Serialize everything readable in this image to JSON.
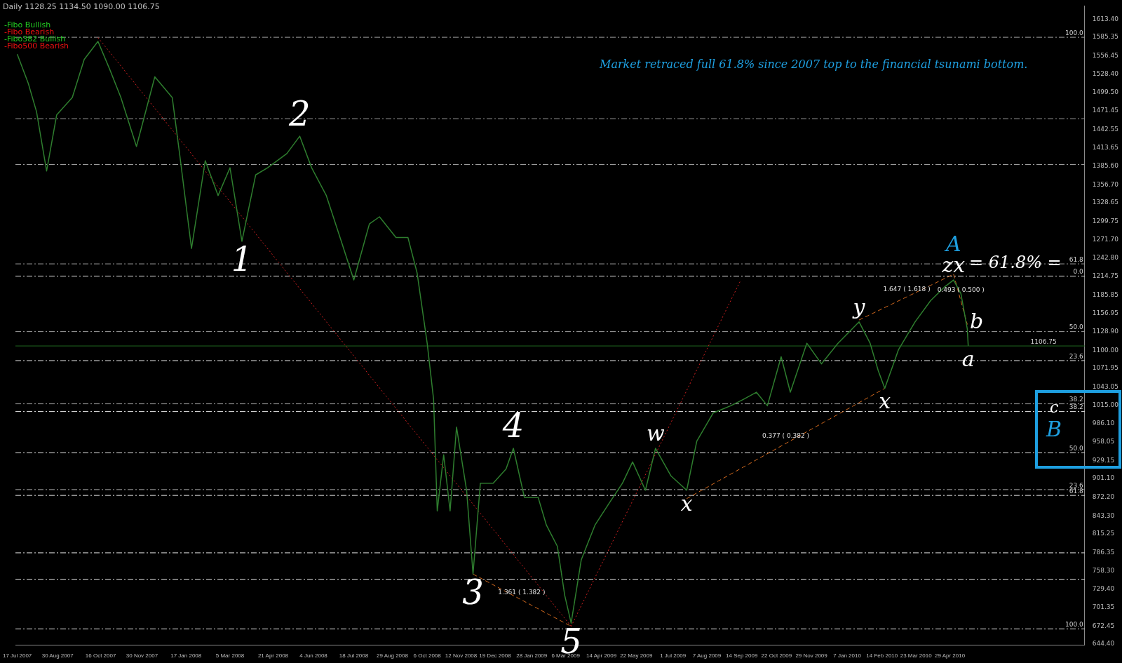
{
  "chart_data": {
    "type": "line",
    "marker": "none",
    "xlim": [
      "2007-07-15",
      "2010-09-23"
    ],
    "ylim": [
      643,
      1634
    ],
    "xticks": [
      {
        "value": "2007-07-17",
        "label": "17 Jul 2007"
      },
      {
        "value": "2007-08-30",
        "label": "30 Aug 2007"
      },
      {
        "value": "2007-10-16",
        "label": "16 Oct 2007"
      },
      {
        "value": "2007-11-30",
        "label": "30 Nov 2007"
      },
      {
        "value": "2008-01-17",
        "label": "17 Jan 2008"
      },
      {
        "value": "2008-03-05",
        "label": "5 Mar 2008"
      },
      {
        "value": "2008-04-21",
        "label": "21 Apr 2008"
      },
      {
        "value": "2008-06-04",
        "label": "4 Jun 2008"
      },
      {
        "value": "2008-07-18",
        "label": "18 Jul 2008"
      },
      {
        "value": "2008-08-29",
        "label": "29 Aug 2008"
      },
      {
        "value": "2008-10-06",
        "label": "6 Oct 2008"
      },
      {
        "value": "2008-11-12",
        "label": "12 Nov 2008"
      },
      {
        "value": "2008-12-19",
        "label": "19 Dec 2008"
      },
      {
        "value": "2009-01-28",
        "label": "28 Jan 2009"
      },
      {
        "value": "2009-03-06",
        "label": "6 Mar 2009"
      },
      {
        "value": "2009-04-14",
        "label": "14 Apr 2009"
      },
      {
        "value": "2009-05-22",
        "label": "22 May 2009"
      },
      {
        "value": "2009-07-01",
        "label": "1 Jul 2009"
      },
      {
        "value": "2009-08-07",
        "label": "7 Aug 2009"
      },
      {
        "value": "2009-09-14",
        "label": "14 Sep 2009"
      },
      {
        "value": "2009-10-22",
        "label": "22 Oct 2009"
      },
      {
        "value": "2009-11-29",
        "label": "29 Nov 2009"
      },
      {
        "value": "2010-01-07",
        "label": "7 Jan 2010"
      },
      {
        "value": "2010-02-14",
        "label": "14 Feb 2010"
      },
      {
        "value": "2010-03-23",
        "label": "23 Mar 2010"
      },
      {
        "value": "2010-04-29",
        "label": "29 Apr 2010"
      }
    ],
    "yticks": [
      {
        "value": 1613.4,
        "label": "1613.40"
      },
      {
        "value": 1585.35,
        "label": "1585.35"
      },
      {
        "value": 1556.45,
        "label": "1556.45"
      },
      {
        "value": 1528.4,
        "label": "1528.40"
      },
      {
        "value": 1499.5,
        "label": "1499.50"
      },
      {
        "value": 1471.45,
        "label": "1471.45"
      },
      {
        "value": 1442.55,
        "label": "1442.55"
      },
      {
        "value": 1413.65,
        "label": "1413.65"
      },
      {
        "value": 1385.6,
        "label": "1385.60"
      },
      {
        "value": 1356.7,
        "label": "1356.70"
      },
      {
        "value": 1328.65,
        "label": "1328.65"
      },
      {
        "value": 1299.75,
        "label": "1299.75"
      },
      {
        "value": 1271.7,
        "label": "1271.70"
      },
      {
        "value": 1242.8,
        "label": "1242.80"
      },
      {
        "value": 1214.75,
        "label": "1214.75"
      },
      {
        "value": 1185.85,
        "label": "1185.85"
      },
      {
        "value": 1156.95,
        "label": "1156.95"
      },
      {
        "value": 1128.9,
        "label": "1128.90"
      },
      {
        "value": 1100,
        "label": "1100.00"
      },
      {
        "value": 1071.95,
        "label": "1071.95"
      },
      {
        "value": 1043.05,
        "label": "1043.05"
      },
      {
        "value": 1015,
        "label": "1015.00"
      },
      {
        "value": 986.1,
        "label": "986.10"
      },
      {
        "value": 958.05,
        "label": "958.05"
      },
      {
        "value": 929.15,
        "label": "929.15"
      },
      {
        "value": 901.1,
        "label": "901.10"
      },
      {
        "value": 872.2,
        "label": "872.20"
      },
      {
        "value": 843.3,
        "label": "843.30"
      },
      {
        "value": 815.25,
        "label": "815.25"
      },
      {
        "value": 786.35,
        "label": "786.35"
      },
      {
        "value": 758.3,
        "label": "758.30"
      },
      {
        "value": 729.4,
        "label": "729.40"
      },
      {
        "value": 701.35,
        "label": "701.35"
      },
      {
        "value": 672.45,
        "label": "672.45"
      },
      {
        "value": 644.4,
        "label": "644.40"
      }
    ],
    "series": [
      {
        "color": "#2e7d2e",
        "x": [
          "2007-07-17",
          "2007-07-29",
          "2007-08-07",
          "2007-08-18",
          "2007-08-29",
          "2007-09-15",
          "2007-09-28",
          "2007-10-13",
          "2007-10-26",
          "2007-11-07",
          "2007-11-24",
          "2007-12-14",
          "2008-01-02",
          "2008-01-10",
          "2008-01-23",
          "2008-02-07",
          "2008-02-21",
          "2008-03-05",
          "2008-03-18",
          "2008-04-02",
          "2008-04-15",
          "2008-05-06",
          "2008-05-20",
          "2008-06-02",
          "2008-06-18",
          "2008-07-03",
          "2008-07-18",
          "2008-08-04",
          "2008-08-15",
          "2008-09-02",
          "2008-09-15",
          "2008-09-25",
          "2008-10-06",
          "2008-10-13",
          "2008-10-17",
          "2008-10-24",
          "2008-10-31",
          "2008-11-07",
          "2008-11-18",
          "2008-11-25",
          "2008-12-03",
          "2008-12-17",
          "2008-12-31",
          "2009-01-08",
          "2009-01-20",
          "2009-02-04",
          "2009-02-13",
          "2009-02-25",
          "2009-03-05",
          "2009-03-12",
          "2009-03-23",
          "2009-04-07",
          "2009-04-22",
          "2009-05-07",
          "2009-05-18",
          "2009-06-01",
          "2009-06-12",
          "2009-06-29",
          "2009-07-16",
          "2009-07-27",
          "2009-08-14",
          "2009-09-02",
          "2009-09-16",
          "2009-09-30",
          "2009-10-12",
          "2009-10-27",
          "2009-11-06",
          "2009-11-24",
          "2009-12-10",
          "2009-12-28",
          "2010-01-20",
          "2010-02-01",
          "2010-02-10",
          "2010-02-17",
          "2010-03-04",
          "2010-03-22",
          "2010-04-08",
          "2010-04-23",
          "2010-05-03",
          "2010-05-11",
          "2010-05-18",
          "2010-05-19"
        ],
        "values": [
          1559,
          1514,
          1470,
          1378,
          1465,
          1492,
          1551,
          1579,
          1535,
          1492,
          1416,
          1524,
          1492,
          1405,
          1258,
          1394,
          1340,
          1383,
          1269,
          1372,
          1383,
          1405,
          1432,
          1383,
          1340,
          1275,
          1209,
          1296,
          1307,
          1275,
          1275,
          1220,
          1111,
          1024,
          851,
          938,
          851,
          981,
          883,
          753,
          894,
          894,
          916,
          948,
          872,
          872,
          829,
          796,
          720,
          677,
          775,
          829,
          862,
          894,
          927,
          883,
          948,
          905,
          883,
          959,
          1003,
          1014,
          1024,
          1035,
          1014,
          1090,
          1035,
          1111,
          1079,
          1111,
          1144,
          1111,
          1068,
          1041,
          1101,
          1144,
          1177,
          1198,
          1209,
          1188,
          1133,
          1107
        ]
      },
      {
        "type": "line",
        "line_style": "dotted",
        "color": "#cc2020",
        "x": [
          "2007-10-13",
          "2009-03-12"
        ],
        "values": [
          1585,
          672
        ]
      },
      {
        "type": "line",
        "line_style": "dotted",
        "color": "#cc2020",
        "x": [
          "2009-03-12",
          "2009-09-13"
        ],
        "values": [
          672,
          1209
        ]
      },
      {
        "type": "line",
        "line_style": "dashed",
        "color": "#d2691e",
        "x": [
          "2008-11-25",
          "2009-03-12"
        ],
        "values": [
          753,
          672
        ]
      },
      {
        "type": "line",
        "line_style": "dashed",
        "color": "#d2691e",
        "x": [
          "2009-07-16",
          "2010-02-17"
        ],
        "values": [
          870,
          1041
        ]
      },
      {
        "type": "line",
        "line_style": "dashed",
        "color": "#d2691e",
        "x": [
          "2010-01-20",
          "2010-05-03"
        ],
        "values": [
          1147,
          1218
        ]
      },
      {
        "type": "line",
        "line_style": "dashed",
        "color": "#d2691e",
        "x": [
          "2010-05-03",
          "2010-05-18"
        ],
        "values": [
          1218,
          1140
        ]
      }
    ],
    "ref_lines": [
      {
        "axis": "y",
        "value": 1585.35,
        "color": "#a0a0a0"
      },
      {
        "axis": "y",
        "value": 1459,
        "color": "#a0a0a0"
      },
      {
        "axis": "y",
        "value": 1388,
        "color": "#a0a0a0"
      },
      {
        "axis": "y",
        "value": 1234,
        "color": "#a0a0a0"
      },
      {
        "axis": "y",
        "value": 1215,
        "color": "#e8e8e8"
      },
      {
        "axis": "y",
        "value": 1129,
        "color": "#a0a0a0"
      },
      {
        "axis": "y",
        "value": 1084,
        "color": "#e8e8e8"
      },
      {
        "axis": "y",
        "value": 1017,
        "color": "#a0a0a0"
      },
      {
        "axis": "y",
        "value": 1005,
        "color": "#e8e8e8"
      },
      {
        "axis": "y",
        "value": 941,
        "color": "#e8e8e8"
      },
      {
        "axis": "y",
        "value": 884,
        "color": "#a0a0a0"
      },
      {
        "axis": "y",
        "value": 875,
        "color": "#e8e8e8"
      },
      {
        "axis": "y",
        "value": 786,
        "color": "#e8e8e8"
      },
      {
        "axis": "y",
        "value": 745,
        "color": "#e8e8e8"
      },
      {
        "axis": "y",
        "value": 668,
        "color": "#e8e8e8"
      },
      {
        "axis": "y",
        "value": 1106.75,
        "label": "1106.75",
        "color": "#1f6a1f",
        "line_style": "solid"
      }
    ],
    "annotations": [
      "Daily 1128.25 1134.50 1090.00 1106.75",
      "-Fibo Bullish",
      "-Fibo Bearish",
      "-Fibo382 Bullish",
      "-Fibo500 Bearish",
      "Market retraced full 61.8% since 2007 top to the financial tsunami bottom.",
      "c",
      "B",
      "= 61.8%  =",
      "b",
      {
        "text": "1",
        "x": "2008-03-18",
        "y": 1269
      },
      {
        "text": "2",
        "x": "2008-05-20",
        "y": 1432
      },
      {
        "text": "3",
        "x": "2008-11-25",
        "y": 753
      },
      {
        "text": "4",
        "x": "2009-01-08",
        "y": 948
      },
      {
        "text": "5",
        "x": "2009-03-12",
        "y": 677
      },
      {
        "text": "w",
        "x": "2009-06-12",
        "y": 948
      },
      {
        "text": "x",
        "x": "2009-07-16",
        "y": 883
      },
      {
        "text": "y",
        "x": "2010-01-20",
        "y": 1144
      },
      {
        "text": "x",
        "x": "2010-02-17",
        "y": 1041
      },
      {
        "text": "zx",
        "x": "2010-05-03",
        "y": 1209
      },
      {
        "text": "A",
        "x": "2010-05-03",
        "y": 1209
      },
      {
        "text": "a",
        "x": "2010-05-19",
        "y": 1107
      },
      {
        "text": "1.361 ( 1.382 )",
        "x": "2009-01-17",
        "y": 713
      },
      {
        "text": "0.377 ( 0.382 )",
        "x": "2009-11-01",
        "y": 955
      },
      {
        "text": "1.647 ( 1.618 )",
        "x": "2010-03-13",
        "y": 1182.5
      },
      {
        "text": "0.493 ( 0.500 )",
        "x": "2010-05-11",
        "y": 1182
      },
      {
        "text": "100.0",
        "x": "2010-09-20",
        "y": 1585.35
      },
      {
        "text": "61.8",
        "x": "2010-09-20",
        "y": 1234
      },
      {
        "text": "0.0",
        "x": "2010-09-20",
        "y": 1215
      },
      {
        "text": "50.0",
        "x": "2010-09-20",
        "y": 1129
      },
      {
        "text": "23.6",
        "x": "2010-09-20",
        "y": 1084
      },
      {
        "text": "38.2",
        "x": "2010-09-20",
        "y": 1017
      },
      {
        "text": "38.2",
        "x": "2010-09-20",
        "y": 1005
      },
      {
        "text": "50.0",
        "x": "2010-09-20",
        "y": 941
      },
      {
        "text": "23.6",
        "x": "2010-09-20",
        "y": 884
      },
      {
        "text": "61.8",
        "x": "2010-09-20",
        "y": 875
      },
      {
        "text": "100.0",
        "x": "2010-09-20",
        "y": 668
      }
    ]
  }
}
